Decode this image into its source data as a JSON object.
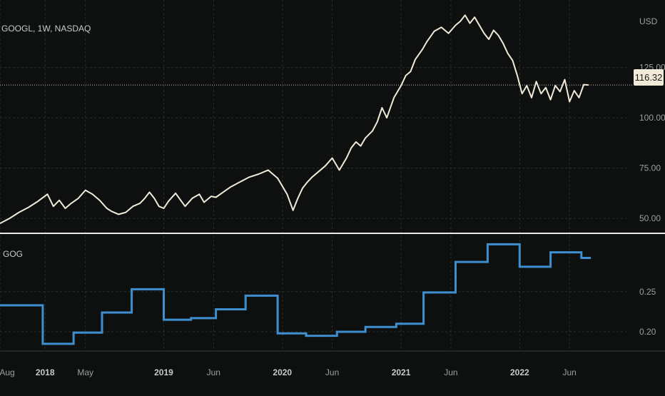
{
  "colors": {
    "background": "#0d100e",
    "grid": "#2a302c",
    "price_line": "#f2ead8",
    "indicator_line": "#3f8fd0",
    "separator": "#e8e8e8",
    "price_tag_bg": "#f2ead8",
    "price_tag_text": "#1a1a1a"
  },
  "header": {
    "symbol": "GOOGL, 1W, NASDAQ",
    "indicator_label": "GOG"
  },
  "last_price": {
    "label": "116.32",
    "value": 116.32
  },
  "chart_data": [
    {
      "type": "line",
      "name": "price-pane",
      "unit": "USD",
      "ylim": [
        44,
        155
      ],
      "yticks": [
        {
          "value": 50,
          "label": "50.00"
        },
        {
          "value": 75,
          "label": "75.00"
        },
        {
          "value": 100,
          "label": "100.00"
        },
        {
          "value": 125,
          "label": "125.00"
        }
      ],
      "x": [
        2017.62,
        2017.7,
        2017.78,
        2017.86,
        2017.94,
        2018.02,
        2018.07,
        2018.12,
        2018.17,
        2018.22,
        2018.28,
        2018.34,
        2018.4,
        2018.46,
        2018.52,
        2018.56,
        2018.62,
        2018.68,
        2018.74,
        2018.8,
        2018.84,
        2018.88,
        2018.92,
        2018.96,
        2019.0,
        2019.04,
        2019.1,
        2019.18,
        2019.24,
        2019.3,
        2019.34,
        2019.4,
        2019.44,
        2019.5,
        2019.56,
        2019.64,
        2019.72,
        2019.8,
        2019.88,
        2019.96,
        2020.04,
        2020.09,
        2020.13,
        2020.17,
        2020.21,
        2020.25,
        2020.3,
        2020.36,
        2020.42,
        2020.48,
        2020.54,
        2020.58,
        2020.62,
        2020.66,
        2020.7,
        2020.76,
        2020.8,
        2020.84,
        2020.88,
        2020.94,
        2021.0,
        2021.04,
        2021.08,
        2021.12,
        2021.18,
        2021.22,
        2021.28,
        2021.34,
        2021.4,
        2021.46,
        2021.5,
        2021.54,
        2021.58,
        2021.62,
        2021.66,
        2021.7,
        2021.74,
        2021.78,
        2021.82,
        2021.86,
        2021.9,
        2021.94,
        2021.98,
        2022.02,
        2022.06,
        2022.1,
        2022.14,
        2022.18,
        2022.22,
        2022.26,
        2022.3,
        2022.34,
        2022.38,
        2022.42,
        2022.46,
        2022.5,
        2022.54,
        2022.58
      ],
      "y": [
        47.5,
        50.0,
        53.0,
        55.5,
        58.5,
        62.0,
        56.0,
        59.0,
        55.0,
        57.5,
        60.0,
        64.0,
        62.0,
        59.0,
        55.0,
        53.5,
        52.0,
        53.0,
        56.0,
        57.5,
        60.0,
        63.0,
        60.0,
        56.0,
        55.0,
        58.5,
        62.5,
        56.0,
        60.0,
        62.0,
        58.0,
        61.0,
        60.5,
        63.0,
        65.5,
        68.0,
        70.5,
        72.0,
        74.0,
        70.0,
        62.0,
        54.0,
        60.0,
        65.0,
        68.0,
        70.5,
        73.0,
        76.0,
        80.0,
        74.0,
        80.0,
        85.0,
        88.0,
        86.0,
        90.0,
        93.5,
        98.0,
        105.0,
        100.0,
        110.0,
        116.0,
        121.0,
        123.0,
        129.0,
        134.0,
        138.0,
        143.0,
        145.0,
        142.0,
        146.0,
        148.0,
        151.0,
        147.0,
        150.0,
        146.0,
        142.0,
        139.0,
        143.5,
        141.0,
        137.0,
        132.0,
        128.5,
        121.0,
        112.0,
        116.0,
        110.0,
        118.0,
        112.0,
        115.0,
        109.0,
        116.0,
        113.0,
        119.0,
        108.0,
        113.5,
        110.0,
        116.5,
        116.32
      ]
    },
    {
      "type": "line",
      "name": "indicator-pane",
      "ylim": [
        0.176,
        0.32
      ],
      "yticks": [
        {
          "value": 0.2,
          "label": "0.20"
        },
        {
          "value": 0.25,
          "label": "0.25"
        }
      ],
      "step": true,
      "x": [
        2017.62,
        2017.98,
        2018.24,
        2018.48,
        2018.73,
        2019.0,
        2019.23,
        2019.44,
        2019.69,
        2019.96,
        2020.2,
        2020.46,
        2020.7,
        2020.96,
        2021.19,
        2021.46,
        2021.73,
        2022.0,
        2022.26,
        2022.52,
        2022.6
      ],
      "y": [
        0.233,
        0.185,
        0.199,
        0.224,
        0.253,
        0.215,
        0.217,
        0.228,
        0.245,
        0.198,
        0.195,
        0.2,
        0.206,
        0.21,
        0.249,
        0.287,
        0.309,
        0.281,
        0.299,
        0.292,
        0.292
      ]
    }
  ],
  "time_axis": {
    "range": [
      2017.62,
      2022.9
    ],
    "ticks": [
      {
        "value": 2017.62,
        "label": "Aug",
        "major": false
      },
      {
        "value": 2018.0,
        "label": "2018",
        "major": true
      },
      {
        "value": 2018.34,
        "label": "May",
        "major": false
      },
      {
        "value": 2019.0,
        "label": "2019",
        "major": true
      },
      {
        "value": 2019.42,
        "label": "Jun",
        "major": false
      },
      {
        "value": 2020.0,
        "label": "2020",
        "major": true
      },
      {
        "value": 2020.42,
        "label": "Jun",
        "major": false
      },
      {
        "value": 2021.0,
        "label": "2021",
        "major": true
      },
      {
        "value": 2021.42,
        "label": "Jun",
        "major": false
      },
      {
        "value": 2022.0,
        "label": "2022",
        "major": true
      },
      {
        "value": 2022.42,
        "label": "Jun",
        "major": false
      }
    ]
  }
}
